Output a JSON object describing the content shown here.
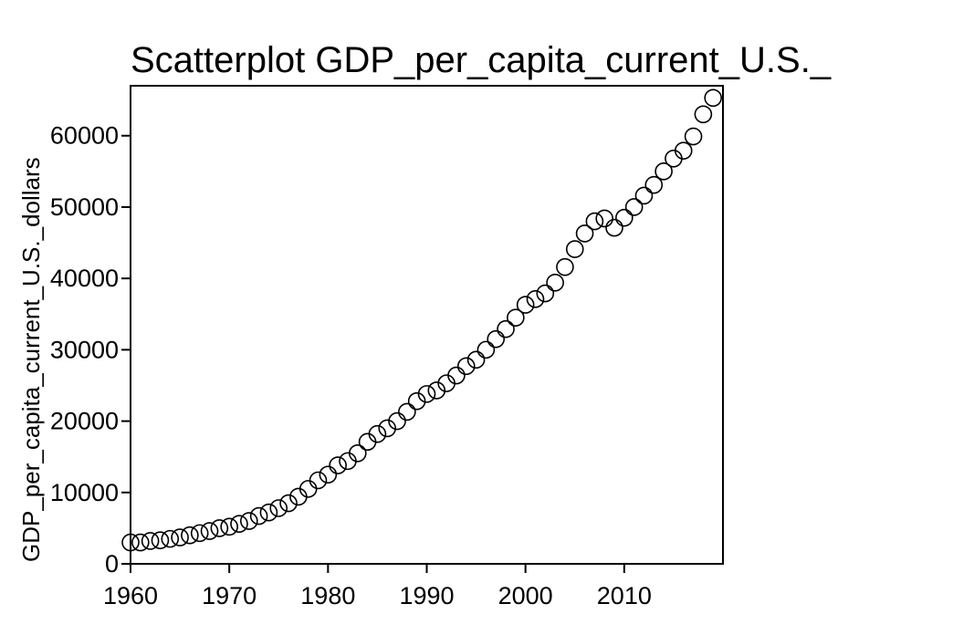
{
  "chart_data": {
    "type": "scatter",
    "title": "Scatterplot GDP_per_capita_current_U.S._",
    "xlabel": "",
    "ylabel": "GDP_per_capita_current_U.S._dollars",
    "xlim": [
      1960,
      2020
    ],
    "ylim": [
      0,
      67000
    ],
    "xticks": [
      "1960",
      "1970",
      "1980",
      "1990",
      "2000",
      "2010"
    ],
    "yticks": [
      "0",
      "10000",
      "20000",
      "30000",
      "40000",
      "50000",
      "60000"
    ],
    "grid": false,
    "legend": "none",
    "marker": "open-circle",
    "x": [
      1960,
      1961,
      1962,
      1963,
      1964,
      1965,
      1966,
      1967,
      1968,
      1969,
      1970,
      1971,
      1972,
      1973,
      1974,
      1975,
      1976,
      1977,
      1978,
      1979,
      1980,
      1981,
      1982,
      1983,
      1984,
      1985,
      1986,
      1987,
      1988,
      1989,
      1990,
      1991,
      1992,
      1993,
      1994,
      1995,
      1996,
      1997,
      1998,
      1999,
      2000,
      2001,
      2002,
      2003,
      2004,
      2005,
      2006,
      2007,
      2008,
      2009,
      2010,
      2011,
      2012,
      2013,
      2014,
      2015,
      2016,
      2017,
      2018,
      2019
    ],
    "y": [
      3000,
      3000,
      3200,
      3300,
      3500,
      3700,
      4000,
      4300,
      4600,
      5000,
      5200,
      5600,
      6000,
      6700,
      7200,
      7800,
      8500,
      9400,
      10500,
      11700,
      12500,
      13800,
      14400,
      15500,
      17100,
      18200,
      19000,
      20000,
      21300,
      22800,
      23800,
      24300,
      25300,
      26400,
      27700,
      28600,
      30000,
      31500,
      32900,
      34500,
      36300,
      37100,
      37900,
      39400,
      41600,
      44100,
      46300,
      48000,
      48400,
      47100,
      48500,
      50000,
      51600,
      53100,
      55000,
      56800,
      57900,
      59900,
      63000,
      65300
    ]
  },
  "colors": {
    "marker_stroke": "#000000",
    "background": "#ffffff"
  }
}
